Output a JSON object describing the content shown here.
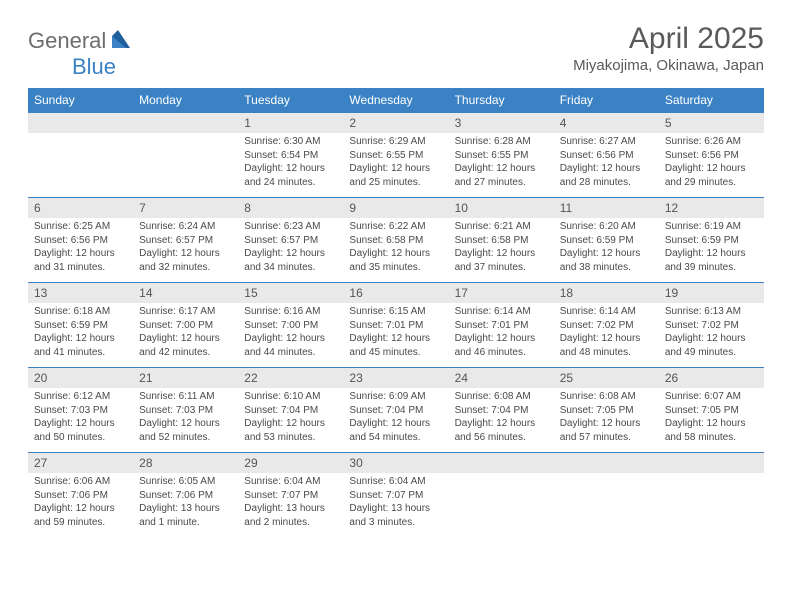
{
  "logo": {
    "text1": "General",
    "text2": "Blue"
  },
  "title": "April 2025",
  "location": "Miyakojima, Okinawa, Japan",
  "colors": {
    "header_bg": "#3b82c4",
    "header_fg": "#ffffff",
    "daynum_bg": "#e9e9e9",
    "row_border": "#3b82c4",
    "text": "#4a4a4a",
    "title_color": "#5a5a5a",
    "logo_gray": "#6d6d6d",
    "logo_blue": "#3b82c4"
  },
  "typography": {
    "title_fontsize": 30,
    "location_fontsize": 15,
    "dow_fontsize": 12,
    "daynum_fontsize": 12,
    "body_fontsize": 10
  },
  "dow": [
    "Sunday",
    "Monday",
    "Tuesday",
    "Wednesday",
    "Thursday",
    "Friday",
    "Saturday"
  ],
  "weeks": [
    [
      null,
      null,
      {
        "n": "1",
        "sr": "6:30 AM",
        "ss": "6:54 PM",
        "dl": "12 hours and 24 minutes."
      },
      {
        "n": "2",
        "sr": "6:29 AM",
        "ss": "6:55 PM",
        "dl": "12 hours and 25 minutes."
      },
      {
        "n": "3",
        "sr": "6:28 AM",
        "ss": "6:55 PM",
        "dl": "12 hours and 27 minutes."
      },
      {
        "n": "4",
        "sr": "6:27 AM",
        "ss": "6:56 PM",
        "dl": "12 hours and 28 minutes."
      },
      {
        "n": "5",
        "sr": "6:26 AM",
        "ss": "6:56 PM",
        "dl": "12 hours and 29 minutes."
      }
    ],
    [
      {
        "n": "6",
        "sr": "6:25 AM",
        "ss": "6:56 PM",
        "dl": "12 hours and 31 minutes."
      },
      {
        "n": "7",
        "sr": "6:24 AM",
        "ss": "6:57 PM",
        "dl": "12 hours and 32 minutes."
      },
      {
        "n": "8",
        "sr": "6:23 AM",
        "ss": "6:57 PM",
        "dl": "12 hours and 34 minutes."
      },
      {
        "n": "9",
        "sr": "6:22 AM",
        "ss": "6:58 PM",
        "dl": "12 hours and 35 minutes."
      },
      {
        "n": "10",
        "sr": "6:21 AM",
        "ss": "6:58 PM",
        "dl": "12 hours and 37 minutes."
      },
      {
        "n": "11",
        "sr": "6:20 AM",
        "ss": "6:59 PM",
        "dl": "12 hours and 38 minutes."
      },
      {
        "n": "12",
        "sr": "6:19 AM",
        "ss": "6:59 PM",
        "dl": "12 hours and 39 minutes."
      }
    ],
    [
      {
        "n": "13",
        "sr": "6:18 AM",
        "ss": "6:59 PM",
        "dl": "12 hours and 41 minutes."
      },
      {
        "n": "14",
        "sr": "6:17 AM",
        "ss": "7:00 PM",
        "dl": "12 hours and 42 minutes."
      },
      {
        "n": "15",
        "sr": "6:16 AM",
        "ss": "7:00 PM",
        "dl": "12 hours and 44 minutes."
      },
      {
        "n": "16",
        "sr": "6:15 AM",
        "ss": "7:01 PM",
        "dl": "12 hours and 45 minutes."
      },
      {
        "n": "17",
        "sr": "6:14 AM",
        "ss": "7:01 PM",
        "dl": "12 hours and 46 minutes."
      },
      {
        "n": "18",
        "sr": "6:14 AM",
        "ss": "7:02 PM",
        "dl": "12 hours and 48 minutes."
      },
      {
        "n": "19",
        "sr": "6:13 AM",
        "ss": "7:02 PM",
        "dl": "12 hours and 49 minutes."
      }
    ],
    [
      {
        "n": "20",
        "sr": "6:12 AM",
        "ss": "7:03 PM",
        "dl": "12 hours and 50 minutes."
      },
      {
        "n": "21",
        "sr": "6:11 AM",
        "ss": "7:03 PM",
        "dl": "12 hours and 52 minutes."
      },
      {
        "n": "22",
        "sr": "6:10 AM",
        "ss": "7:04 PM",
        "dl": "12 hours and 53 minutes."
      },
      {
        "n": "23",
        "sr": "6:09 AM",
        "ss": "7:04 PM",
        "dl": "12 hours and 54 minutes."
      },
      {
        "n": "24",
        "sr": "6:08 AM",
        "ss": "7:04 PM",
        "dl": "12 hours and 56 minutes."
      },
      {
        "n": "25",
        "sr": "6:08 AM",
        "ss": "7:05 PM",
        "dl": "12 hours and 57 minutes."
      },
      {
        "n": "26",
        "sr": "6:07 AM",
        "ss": "7:05 PM",
        "dl": "12 hours and 58 minutes."
      }
    ],
    [
      {
        "n": "27",
        "sr": "6:06 AM",
        "ss": "7:06 PM",
        "dl": "12 hours and 59 minutes."
      },
      {
        "n": "28",
        "sr": "6:05 AM",
        "ss": "7:06 PM",
        "dl": "13 hours and 1 minute."
      },
      {
        "n": "29",
        "sr": "6:04 AM",
        "ss": "7:07 PM",
        "dl": "13 hours and 2 minutes."
      },
      {
        "n": "30",
        "sr": "6:04 AM",
        "ss": "7:07 PM",
        "dl": "13 hours and 3 minutes."
      },
      null,
      null,
      null
    ]
  ],
  "labels": {
    "sunrise": "Sunrise:",
    "sunset": "Sunset:",
    "daylight": "Daylight:"
  }
}
